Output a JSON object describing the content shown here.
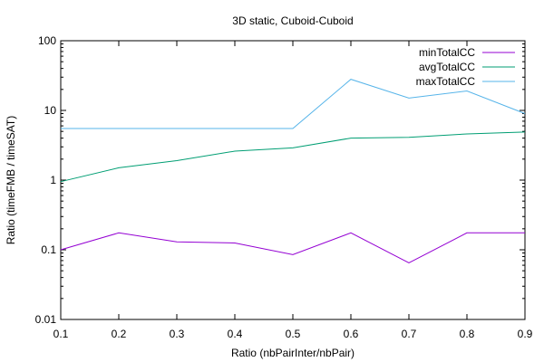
{
  "chart_data": {
    "type": "line",
    "title": "3D static, Cuboid-Cuboid",
    "xlabel": "Ratio (nbPairInter/nbPair)",
    "ylabel": "Ratio (timeFMB / timeSAT)",
    "x": [
      0.1,
      0.2,
      0.3,
      0.4,
      0.5,
      0.6,
      0.7,
      0.8,
      0.9
    ],
    "xlim": [
      0.1,
      0.9
    ],
    "ylim": [
      0.01,
      100
    ],
    "yscale": "log",
    "grid": false,
    "legend_position": "top-right",
    "xticks": [
      "0.1",
      "0.2",
      "0.3",
      "0.4",
      "0.5",
      "0.6",
      "0.7",
      "0.8",
      "0.9"
    ],
    "yticks": [
      {
        "value": 0.01,
        "label": "0.01"
      },
      {
        "value": 0.1,
        "label": "0.1"
      },
      {
        "value": 1,
        "label": "1"
      },
      {
        "value": 10,
        "label": "10"
      },
      {
        "value": 100,
        "label": "100"
      }
    ],
    "series": [
      {
        "name": "minTotalCC",
        "color": "#9400d3",
        "values": [
          0.1,
          0.175,
          0.13,
          0.125,
          0.085,
          0.175,
          0.065,
          0.175,
          0.175
        ]
      },
      {
        "name": "avgTotalCC",
        "color": "#009e73",
        "values": [
          0.95,
          1.5,
          1.9,
          2.6,
          2.9,
          4.0,
          4.1,
          4.6,
          4.9
        ]
      },
      {
        "name": "maxTotalCC",
        "color": "#56b4e9",
        "values": [
          5.5,
          5.5,
          5.5,
          5.5,
          5.5,
          28,
          15,
          19,
          9
        ]
      }
    ]
  }
}
